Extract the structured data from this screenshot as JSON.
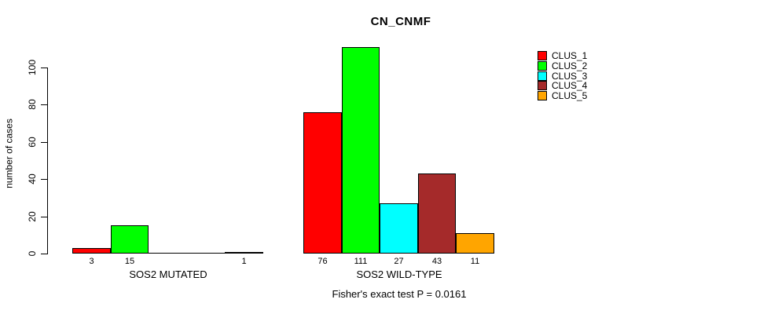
{
  "title": "CN_CNMF",
  "chart_data": {
    "type": "bar",
    "title": "CN_CNMF",
    "xlabel": "",
    "ylabel": "number of cases",
    "categories": [
      "SOS2 MUTATED",
      "SOS2 WILD-TYPE"
    ],
    "series": [
      {
        "name": "CLUS_1",
        "color": "#FF0000",
        "values": [
          3,
          76
        ]
      },
      {
        "name": "CLUS_2",
        "color": "#00FF00",
        "values": [
          15,
          111
        ]
      },
      {
        "name": "CLUS_3",
        "color": "#00FFFF",
        "values": [
          0,
          27
        ]
      },
      {
        "name": "CLUS_4",
        "color": "#A52A2A",
        "values": [
          0,
          43
        ]
      },
      {
        "name": "CLUS_5",
        "color": "#FFA500",
        "values": [
          1,
          11
        ]
      }
    ],
    "bar_value_labels": [
      [
        "3",
        "15",
        "",
        "",
        "1"
      ],
      [
        "76",
        "111",
        "27",
        "43",
        "11"
      ]
    ],
    "yticks": [
      0,
      20,
      40,
      60,
      80,
      100
    ],
    "ylim": [
      0,
      100
    ],
    "grid": false,
    "legend_position": "right",
    "annotation": "Fisher's exact test P = 0.0161",
    "background_color": "#FFFFFF",
    "bar_outline_color": "#000000"
  }
}
